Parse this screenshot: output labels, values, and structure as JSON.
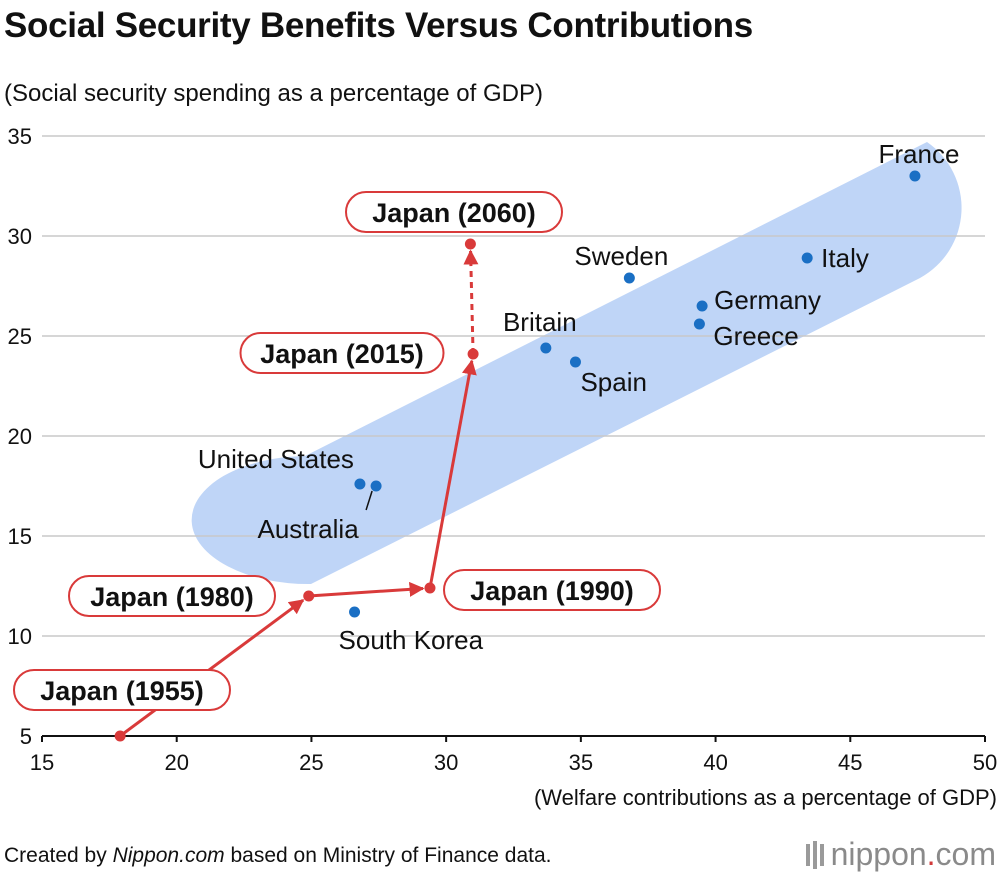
{
  "title": "Social Security Benefits Versus Contributions",
  "subtitle": "(Social security spending as a percentage of GDP)",
  "footer": {
    "prefix": "Created by ",
    "source_name": "Nippon.com",
    "suffix": " based on Ministry of Finance data.",
    "brand_name": "nippon",
    "brand_dot": ".",
    "brand_tld": "com"
  },
  "colors": {
    "country_point": "#1a6fc4",
    "japan": "#d93a3a",
    "band": "#bcd3f7",
    "grid": "#c8c8c8"
  },
  "chart_data": {
    "type": "scatter",
    "title": "Social Security Benefits Versus Contributions",
    "ylabel": "(Social security spending as a percentage of GDP)",
    "xlabel": "(Welfare contributions as a percentage of GDP)",
    "xlim": [
      15,
      50
    ],
    "ylim": [
      5,
      35
    ],
    "xticks": [
      15,
      20,
      25,
      30,
      35,
      40,
      45,
      50
    ],
    "yticks": [
      5,
      10,
      15,
      20,
      25,
      30,
      35
    ],
    "grid": "horizontal",
    "countries": [
      {
        "name": "France",
        "x": 47.4,
        "y": 33.0
      },
      {
        "name": "Italy",
        "x": 43.4,
        "y": 28.9
      },
      {
        "name": "Sweden",
        "x": 36.8,
        "y": 27.9
      },
      {
        "name": "Germany",
        "x": 39.5,
        "y": 26.5
      },
      {
        "name": "Greece",
        "x": 39.4,
        "y": 25.6
      },
      {
        "name": "Britain",
        "x": 33.7,
        "y": 24.4
      },
      {
        "name": "Spain",
        "x": 34.8,
        "y": 23.7
      },
      {
        "name": "United States",
        "x": 26.8,
        "y": 17.6
      },
      {
        "name": "Australia",
        "x": 27.4,
        "y": 17.5
      },
      {
        "name": "South Korea",
        "x": 26.6,
        "y": 11.2
      }
    ],
    "japan": [
      {
        "name": "Japan (1955)",
        "x": 17.9,
        "y": 5.0
      },
      {
        "name": "Japan (1980)",
        "x": 24.9,
        "y": 12.0
      },
      {
        "name": "Japan (1990)",
        "x": 29.4,
        "y": 12.4
      },
      {
        "name": "Japan (2015)",
        "x": 31.0,
        "y": 24.1
      },
      {
        "name": "Japan (2060)",
        "x": 30.9,
        "y": 29.6
      }
    ],
    "japan_projection_segment": [
      "Japan (2015)",
      "Japan (2060)"
    ]
  }
}
